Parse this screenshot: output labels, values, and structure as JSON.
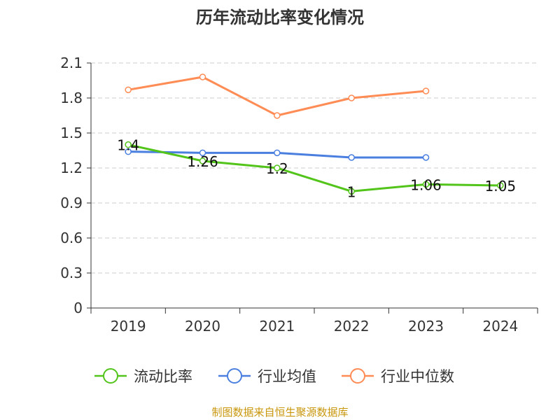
{
  "chart_data": {
    "type": "line",
    "title": "历年流动比率变化情况",
    "categories": [
      "2019",
      "2020",
      "2021",
      "2022",
      "2023",
      "2024"
    ],
    "ylim": [
      0,
      2.1
    ],
    "yticks": [
      "0",
      "0.3",
      "0.6",
      "0.9",
      "1.2",
      "1.5",
      "1.8",
      "2.1"
    ],
    "grid": true,
    "legend_position": "bottom",
    "series": [
      {
        "name": "流动比率",
        "color": "#52c41a",
        "values": [
          1.4,
          1.26,
          1.2,
          1,
          1.06,
          1.05
        ],
        "labels": [
          "1.4",
          "1.26",
          "1.2",
          "1",
          "1.06",
          "1.05"
        ]
      },
      {
        "name": "行业均值",
        "color": "#4a7fe0",
        "values": [
          1.34,
          1.33,
          1.33,
          1.29,
          1.29,
          null
        ]
      },
      {
        "name": "行业中位数",
        "color": "#ff8c55",
        "values": [
          1.87,
          1.98,
          1.65,
          1.8,
          1.86,
          null
        ]
      }
    ],
    "source": "制图数据来自恒生聚源数据库"
  }
}
